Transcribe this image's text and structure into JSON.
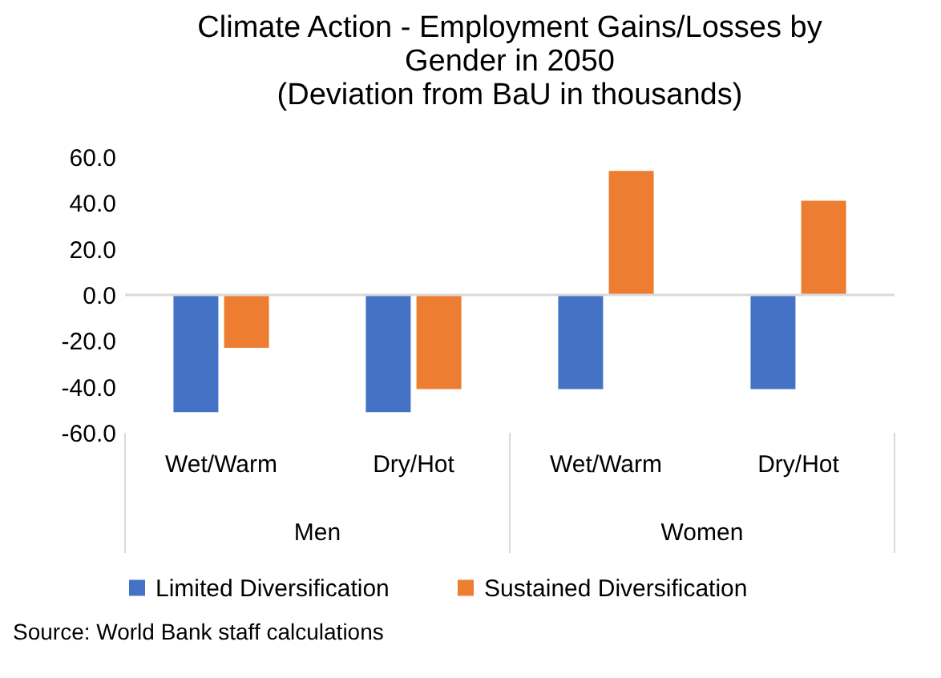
{
  "chart_data": {
    "type": "bar",
    "title": "Climate Action - Employment Gains/Losses by Gender in 2050",
    "subtitle": "(Deviation from BaU in thousands)",
    "categories": [
      "Wet/Warm",
      "Dry/Hot",
      "Wet/Warm",
      "Dry/Hot"
    ],
    "series": [
      {
        "name": "Limited Diversification",
        "color": "#4472c4",
        "values": [
          -51,
          -51,
          -41,
          -41
        ]
      },
      {
        "name": "Sustained Diversification",
        "color": "#ed7d31",
        "values": [
          -23,
          -41,
          54,
          41
        ]
      }
    ],
    "annotations": [
      "Men",
      "Women",
      "Source: World Bank staff calculations"
    ],
    "ylim": [
      -60,
      60
    ],
    "yticks": [
      {
        "value": -60,
        "label": "-60.0"
      },
      {
        "value": -40,
        "label": "-40.0"
      },
      {
        "value": -20,
        "label": "-20.0"
      },
      {
        "value": 0,
        "label": "0.0"
      },
      {
        "value": 20,
        "label": "20.0"
      },
      {
        "value": 40,
        "label": "40.0"
      },
      {
        "value": 60,
        "label": "60.0"
      }
    ],
    "ref_lines": [
      {
        "axis": "y",
        "value": 0,
        "color": "#d9d9d9"
      }
    ],
    "grid": false,
    "legend": "bottom"
  }
}
